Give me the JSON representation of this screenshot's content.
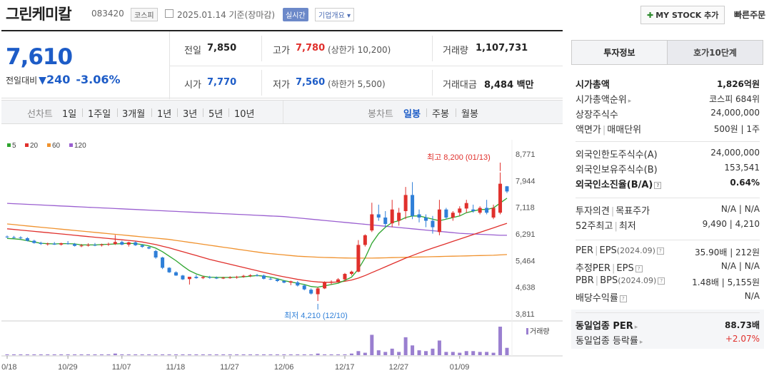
{
  "header": {
    "name": "그린케미칼",
    "code": "083420",
    "market": "코스피",
    "date": "2025.01.14 기준(장마감)",
    "realtime": "실시간",
    "company": "기업개요 ▾",
    "mystock": "MY STOCK 추가",
    "quick": "빠른주문"
  },
  "price": {
    "current": "7,610",
    "change_label": "전일대비",
    "change": "240",
    "change_pct": "-3.06%",
    "prev_label": "전일",
    "prev": "7,850",
    "high_label": "고가",
    "high": "7,780",
    "upper": "(상한가 10,200)",
    "vol_label": "거래량",
    "vol": "1,107,731",
    "open_label": "시가",
    "open": "7,770",
    "low_label": "저가",
    "low": "7,560",
    "lower": "(하한가 5,500)",
    "amt_label": "거래대금",
    "amt": "8,484 백만"
  },
  "tabs": {
    "line_chart": "선차트",
    "periods": [
      "1일",
      "1주일",
      "3개월",
      "1년",
      "3년",
      "5년",
      "10년"
    ],
    "candle_chart": "봉차트",
    "candle": [
      "일봉",
      "주봉",
      "월봉"
    ]
  },
  "chart_data": {
    "type": "candlestick",
    "legend": [
      {
        "name": "5",
        "color": "#2ea52e"
      },
      {
        "name": "20",
        "color": "#e0302c"
      },
      {
        "name": "60",
        "color": "#f0922e"
      },
      {
        "name": "120",
        "color": "#9a5fd0"
      }
    ],
    "y_ticks": [
      "8,771",
      "7,944",
      "7,118",
      "6,291",
      "5,464",
      "4,638",
      "3,811"
    ],
    "ylim": [
      3811,
      8771
    ],
    "x_ticks": [
      "10/18",
      "10/29",
      "11/07",
      "11/18",
      "11/27",
      "12/06",
      "12/17",
      "12/27",
      "01/09"
    ],
    "high_note": "최고 8,200 (01/13)",
    "low_note": "최저 4,210 (12/10)",
    "volume_label": "거래량",
    "candles": [
      [
        6210,
        6240,
        6160,
        6190
      ],
      [
        6190,
        6230,
        6150,
        6180
      ],
      [
        6180,
        6220,
        6120,
        6160
      ],
      [
        6160,
        6190,
        6060,
        6080
      ],
      [
        6080,
        6110,
        5990,
        6010
      ],
      [
        6010,
        6050,
        5950,
        5980
      ],
      [
        5980,
        6020,
        5930,
        5990
      ],
      [
        5990,
        6040,
        5950,
        5960
      ],
      [
        5960,
        6020,
        5930,
        6000
      ],
      [
        6000,
        6070,
        5960,
        5980
      ],
      [
        5980,
        6010,
        5900,
        5920
      ],
      [
        5920,
        5980,
        5880,
        5930
      ],
      [
        5930,
        6000,
        5900,
        5950
      ],
      [
        5950,
        6010,
        5910,
        5940
      ],
      [
        5940,
        5990,
        5900,
        5960
      ],
      [
        5960,
        6020,
        5920,
        5980
      ],
      [
        5980,
        6260,
        5950,
        6040
      ],
      [
        6040,
        6080,
        5940,
        5960
      ],
      [
        5960,
        6050,
        5900,
        6030
      ],
      [
        6030,
        6060,
        5920,
        5940
      ],
      [
        5940,
        5980,
        5860,
        5890
      ],
      [
        5880,
        5900,
        5820,
        5840
      ],
      [
        5760,
        5800,
        5520,
        5560
      ],
      [
        5560,
        5580,
        5200,
        5240
      ],
      [
        5240,
        5260,
        5080,
        5100
      ],
      [
        5100,
        5130,
        4990,
        5000
      ],
      [
        5000,
        5020,
        4860,
        4880
      ],
      [
        4890,
        4920,
        4720,
        4960
      ],
      [
        4960,
        5020,
        4900,
        4920
      ],
      [
        4920,
        4990,
        4890,
        4950
      ],
      [
        4950,
        4990,
        4900,
        4930
      ],
      [
        4930,
        4970,
        4890,
        4910
      ],
      [
        4910,
        4960,
        4890,
        4930
      ],
      [
        4930,
        4980,
        4900,
        4940
      ],
      [
        4940,
        4990,
        4900,
        4960
      ],
      [
        4960,
        5020,
        4930,
        4990
      ],
      [
        4990,
        5040,
        4950,
        5010
      ],
      [
        5010,
        5050,
        4970,
        5000
      ],
      [
        5000,
        5030,
        4880,
        4900
      ],
      [
        4900,
        4940,
        4860,
        4880
      ],
      [
        4880,
        4910,
        4800,
        4830
      ],
      [
        4830,
        4860,
        4760,
        4780
      ],
      [
        4780,
        4840,
        4700,
        4820
      ],
      [
        4790,
        4830,
        4660,
        4690
      ],
      [
        4690,
        4720,
        4540,
        4570
      ],
      [
        4560,
        4600,
        4410,
        4440
      ],
      [
        4420,
        4640,
        4210,
        4600
      ],
      [
        4600,
        4820,
        4580,
        4780
      ],
      [
        4780,
        4850,
        4720,
        4810
      ],
      [
        4810,
        4920,
        4780,
        4880
      ],
      [
        4880,
        5080,
        4850,
        5050
      ],
      [
        5050,
        5150,
        5000,
        5120
      ],
      [
        5120,
        6100,
        5100,
        5950
      ],
      [
        5950,
        6280,
        5900,
        6250
      ],
      [
        6400,
        7260,
        6350,
        6900
      ],
      [
        6900,
        7200,
        6700,
        6800
      ],
      [
        6800,
        7000,
        6500,
        6600
      ],
      [
        6620,
        7350,
        6500,
        7050
      ],
      [
        6700,
        7100,
        6550,
        6950
      ],
      [
        7000,
        7750,
        6750,
        7500
      ],
      [
        7500,
        7900,
        6750,
        6850
      ],
      [
        6900,
        7050,
        6650,
        6800
      ],
      [
        6800,
        6900,
        6500,
        6700
      ],
      [
        6700,
        6850,
        6300,
        6500
      ],
      [
        6350,
        7350,
        6250,
        7050
      ],
      [
        7050,
        7100,
        6750,
        6800
      ],
      [
        6800,
        7000,
        6700,
        6950
      ],
      [
        6950,
        7150,
        6850,
        7080
      ],
      [
        7080,
        7350,
        6950,
        7250
      ],
      [
        7050,
        7200,
        6950,
        7000
      ],
      [
        6950,
        7150,
        6900,
        7100
      ],
      [
        7100,
        7350,
        6900,
        6950
      ],
      [
        6800,
        7200,
        6750,
        7100
      ],
      [
        6950,
        8200,
        6900,
        7850
      ],
      [
        7770,
        7780,
        7560,
        7610
      ]
    ],
    "ma5": [
      6150,
      6140,
      6120,
      6080,
      6040,
      6000,
      5990,
      5980,
      5990,
      5990,
      5980,
      5950,
      5950,
      5950,
      5960,
      5970,
      5980,
      5990,
      6000,
      5990,
      5960,
      5920,
      5850,
      5740,
      5600,
      5460,
      5300,
      5150,
      5050,
      4980,
      4950,
      4940,
      4940,
      4940,
      4950,
      4960,
      4980,
      5000,
      4980,
      4950,
      4900,
      4840,
      4800,
      4760,
      4720,
      4660,
      4640,
      4680,
      4720,
      4760,
      4850,
      4950,
      5200,
      5550,
      6000,
      6300,
      6500,
      6650,
      6700,
      6800,
      6850,
      6850,
      6800,
      6750,
      6700,
      6750,
      6800,
      6850,
      6950,
      7000,
      7050,
      7050,
      7100,
      7250,
      7400
    ],
    "ma20": [
      6450,
      6430,
      6410,
      6390,
      6370,
      6350,
      6330,
      6310,
      6290,
      6270,
      6250,
      6230,
      6210,
      6190,
      6170,
      6150,
      6130,
      6110,
      6090,
      6070,
      6040,
      6000,
      5960,
      5910,
      5860,
      5800,
      5740,
      5680,
      5620,
      5560,
      5500,
      5450,
      5400,
      5350,
      5300,
      5250,
      5200,
      5150,
      5100,
      5050,
      5000,
      4960,
      4920,
      4880,
      4850,
      4820,
      4800,
      4790,
      4790,
      4800,
      4820,
      4860,
      4920,
      5000,
      5090,
      5180,
      5270,
      5360,
      5450,
      5540,
      5620,
      5700,
      5780,
      5850,
      5920,
      5990,
      6060,
      6130,
      6200,
      6270,
      6340,
      6410,
      6480,
      6550,
      6620
    ],
    "ma60": [
      6600,
      6580,
      6560,
      6540,
      6520,
      6500,
      6480,
      6460,
      6440,
      6420,
      6400,
      6380,
      6360,
      6340,
      6320,
      6300,
      6280,
      6260,
      6240,
      6220,
      6200,
      6180,
      6160,
      6140,
      6120,
      6090,
      6060,
      6030,
      6000,
      5970,
      5940,
      5910,
      5880,
      5850,
      5820,
      5790,
      5760,
      5730,
      5700,
      5680,
      5660,
      5640,
      5620,
      5600,
      5590,
      5580,
      5570,
      5560,
      5555,
      5550,
      5545,
      5540,
      5540,
      5540,
      5540,
      5545,
      5550,
      5555,
      5560,
      5565,
      5570,
      5575,
      5580,
      5585,
      5590,
      5595,
      5600,
      5605,
      5610,
      5615,
      5620,
      5625,
      5630,
      5640,
      5650
    ],
    "ma120": [
      7240,
      7230,
      7220,
      7210,
      7200,
      7190,
      7180,
      7170,
      7160,
      7150,
      7140,
      7130,
      7120,
      7110,
      7100,
      7090,
      7080,
      7070,
      7060,
      7050,
      7040,
      7030,
      7020,
      7010,
      7000,
      6990,
      6980,
      6970,
      6960,
      6950,
      6940,
      6930,
      6920,
      6910,
      6900,
      6890,
      6880,
      6870,
      6860,
      6850,
      6840,
      6830,
      6810,
      6790,
      6770,
      6750,
      6730,
      6710,
      6690,
      6670,
      6650,
      6630,
      6610,
      6590,
      6570,
      6550,
      6530,
      6510,
      6490,
      6470,
      6450,
      6430,
      6410,
      6390,
      6370,
      6350,
      6330,
      6310,
      6300,
      6290,
      6280,
      6270,
      6260,
      6250,
      6250
    ],
    "volume": [
      1,
      1,
      1,
      1,
      1,
      1,
      1,
      1,
      1,
      1,
      1,
      1,
      1,
      1,
      1,
      1,
      2,
      1,
      1,
      1,
      1,
      1,
      1,
      1,
      1,
      1,
      1,
      1,
      1,
      1,
      1,
      1,
      1,
      1,
      1,
      1,
      1,
      1,
      1,
      1,
      1,
      1,
      1,
      1,
      1,
      1,
      2,
      1,
      1,
      1,
      1,
      2,
      5,
      3,
      25,
      6,
      4,
      8,
      4,
      22,
      12,
      6,
      5,
      8,
      18,
      4,
      4,
      3,
      5,
      5,
      4,
      4,
      3,
      35,
      9
    ]
  },
  "info": {
    "tab_active": "투자정보",
    "tab_other": "호가10단계",
    "rows1": [
      {
        "label": "시가총액",
        "value": "1,826억원",
        "bold": true
      },
      {
        "label": "시가총액순위",
        "value": "코스피 684위",
        "arrow": true
      },
      {
        "label": "상장주식수",
        "value": "24,000,000"
      },
      {
        "label": "액면가",
        "label2": "매매단위",
        "value": "500원 | 1주"
      }
    ],
    "rows2": [
      {
        "label": "외국인한도주식수(A)",
        "value": "24,000,000"
      },
      {
        "label": "외국인보유주식수(B)",
        "value": "153,541"
      },
      {
        "label": "외국인소진율(B/A)",
        "value": "0.64%",
        "bold": true
      }
    ],
    "rows3": [
      {
        "label": "투자의견",
        "label2": "목표주가",
        "value": "N/A | N/A"
      },
      {
        "label": "52주최고",
        "label2": "최저",
        "value": "9,490 | 4,210"
      }
    ],
    "rows4": [
      {
        "label": "PER",
        "label2": "EPS",
        "extra": "(2024.09)",
        "value": "35.90배 | 212원"
      },
      {
        "label": "추정PER",
        "label2": "EPS",
        "value": "N/A | N/A"
      },
      {
        "label": "PBR",
        "label2": "BPS",
        "extra": "(2024.09)",
        "value": "1.48배 | 5,155원"
      },
      {
        "label": "배당수익률",
        "value": "N/A"
      }
    ],
    "rows5": [
      {
        "label": "동일업종 PER",
        "value": "88.73배",
        "bold": true
      },
      {
        "label": "동일업종 등락률",
        "value": "+2.07%",
        "red": true
      }
    ]
  }
}
